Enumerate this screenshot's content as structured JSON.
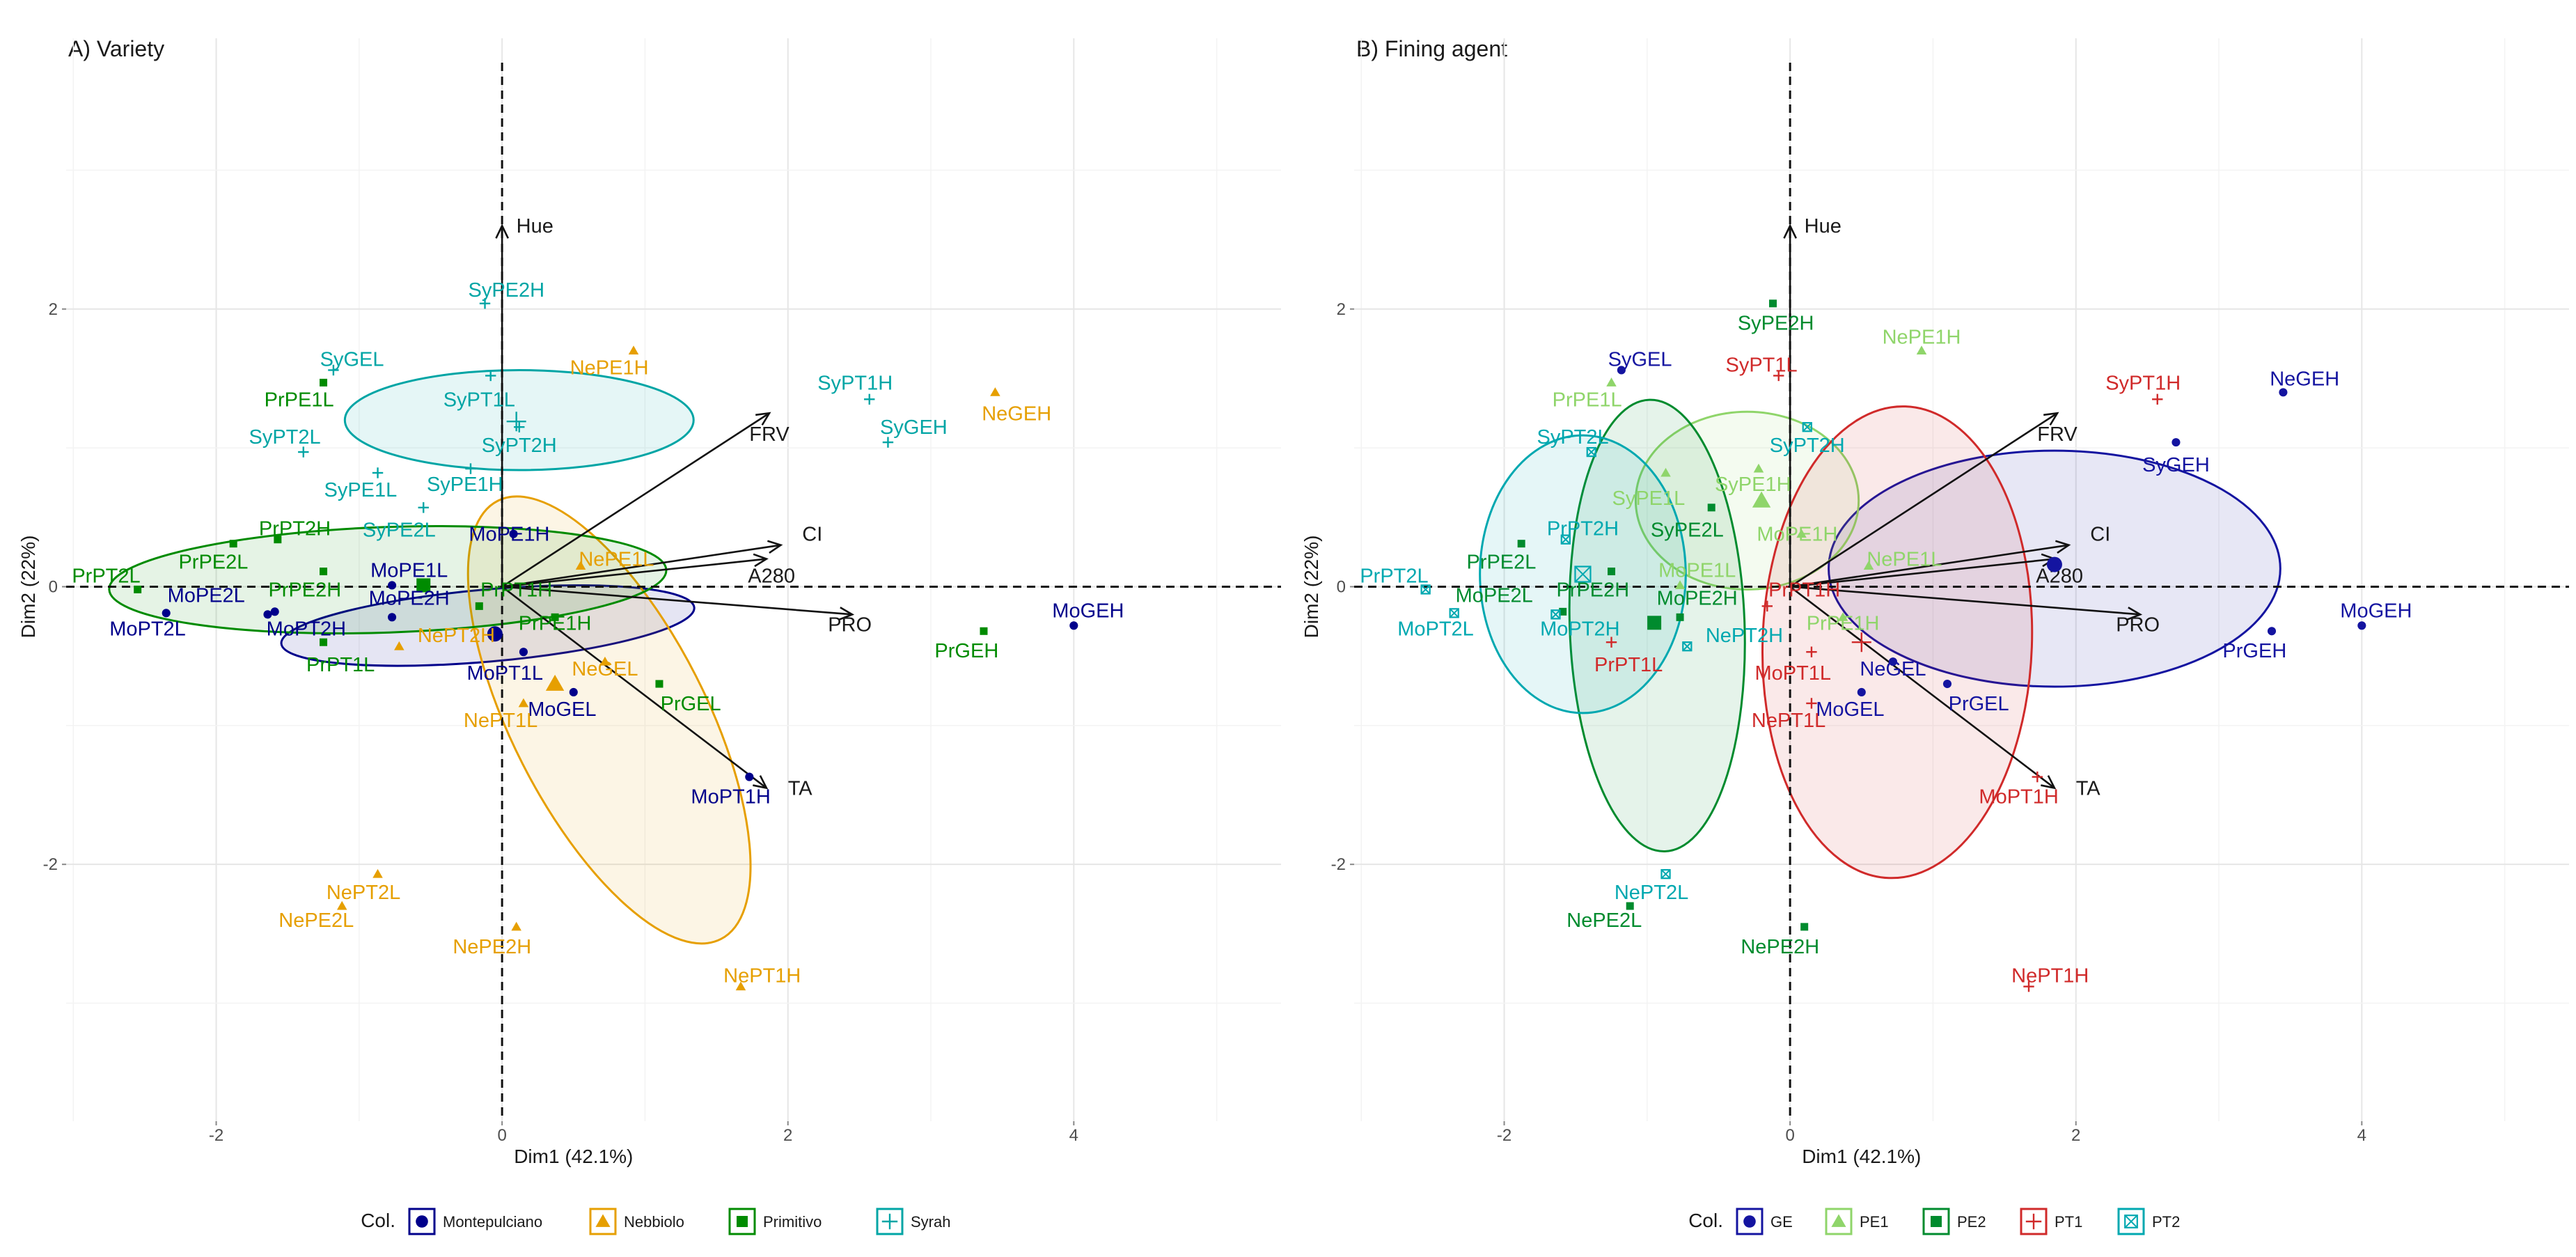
{
  "chart_data": [
    {
      "type": "scatter",
      "subtype": "pca-biplot",
      "title": "A) Variety",
      "xlabel": "Dim1 (42.1%)",
      "ylabel": "Dim2 (22%)",
      "xlim": [
        -3.05,
        5.45
      ],
      "ylim": [
        -3.85,
        3.95
      ],
      "xticks": [
        -2,
        0,
        2,
        4
      ],
      "yticks": [
        -2,
        0,
        2
      ],
      "legend": {
        "title": "Col.",
        "position": "bottom"
      },
      "groups": [
        {
          "name": "Montepulciano",
          "color": "#00008B",
          "shape": "circle"
        },
        {
          "name": "Nebbiolo",
          "color": "#E69F00",
          "shape": "triangle"
        },
        {
          "name": "Primitivo",
          "color": "#008B00",
          "shape": "square"
        },
        {
          "name": "Syrah",
          "color": "#00A5A5",
          "shape": "plus"
        }
      ],
      "points": [
        {
          "label": "MoGEH",
          "group": "Montepulciano",
          "x": 4.0,
          "y": -0.28,
          "lx": 4.1,
          "ly": -0.17
        },
        {
          "label": "MoGEL",
          "group": "Montepulciano",
          "x": 0.5,
          "y": -0.76,
          "lx": 0.42,
          "ly": -0.88
        },
        {
          "label": "MoPT1H",
          "group": "Montepulciano",
          "x": 1.73,
          "y": -1.37,
          "lx": 1.6,
          "ly": -1.51
        },
        {
          "label": "MoPT1L",
          "group": "Montepulciano",
          "x": 0.15,
          "y": -0.47,
          "lx": 0.02,
          "ly": -0.62
        },
        {
          "label": "MoPE1H",
          "group": "Montepulciano",
          "x": 0.08,
          "y": 0.38,
          "lx": 0.05,
          "ly": 0.38
        },
        {
          "label": "MoPE1L",
          "group": "Montepulciano",
          "x": -0.77,
          "y": 0.01,
          "lx": -0.65,
          "ly": 0.12
        },
        {
          "label": "MoPE2H",
          "group": "Montepulciano",
          "x": -0.77,
          "y": -0.22,
          "lx": -0.65,
          "ly": -0.08
        },
        {
          "label": "MoPE2L",
          "group": "Montepulciano",
          "x": -1.59,
          "y": -0.18,
          "lx": -2.07,
          "ly": -0.06
        },
        {
          "label": "MoPT2H",
          "group": "Montepulciano",
          "x": -1.64,
          "y": -0.2,
          "lx": -1.37,
          "ly": -0.3
        },
        {
          "label": "MoPT2L",
          "group": "Montepulciano",
          "x": -2.35,
          "y": -0.19,
          "lx": -2.48,
          "ly": -0.3
        },
        {
          "label": "NeGEH",
          "group": "Nebbiolo",
          "x": 3.45,
          "y": 1.4,
          "lx": 3.6,
          "ly": 1.25
        },
        {
          "label": "NeGEL",
          "group": "Nebbiolo",
          "x": 0.72,
          "y": -0.54,
          "lx": 0.72,
          "ly": -0.59
        },
        {
          "label": "NePE1H",
          "group": "Nebbiolo",
          "x": 0.92,
          "y": 1.7,
          "lx": 0.75,
          "ly": 1.58
        },
        {
          "label": "NePE1L",
          "group": "Nebbiolo",
          "x": 0.55,
          "y": 0.15,
          "lx": 0.8,
          "ly": 0.2
        },
        {
          "label": "NePT1H",
          "group": "Nebbiolo",
          "x": 1.67,
          "y": -2.88,
          "lx": 1.82,
          "ly": -2.8
        },
        {
          "label": "NePT1L",
          "group": "Nebbiolo",
          "x": 0.15,
          "y": -0.84,
          "lx": -0.01,
          "ly": -0.96
        },
        {
          "label": "NePE2H",
          "group": "Nebbiolo",
          "x": 0.1,
          "y": -2.45,
          "lx": -0.07,
          "ly": -2.59
        },
        {
          "label": "NePE2L",
          "group": "Nebbiolo",
          "x": -1.12,
          "y": -2.3,
          "lx": -1.3,
          "ly": -2.4
        },
        {
          "label": "NePT2L",
          "group": "Nebbiolo",
          "x": -0.87,
          "y": -2.07,
          "lx": -0.97,
          "ly": -2.2
        },
        {
          "label": "NePT2H",
          "group": "Nebbiolo",
          "x": -0.72,
          "y": -0.43,
          "lx": -0.32,
          "ly": -0.35
        },
        {
          "label": "PrGEH",
          "group": "Primitivo",
          "x": 3.37,
          "y": -0.32,
          "lx": 3.25,
          "ly": -0.46
        },
        {
          "label": "PrGEL",
          "group": "Primitivo",
          "x": 1.1,
          "y": -0.7,
          "lx": 1.32,
          "ly": -0.84
        },
        {
          "label": "PrPE1L",
          "group": "Primitivo",
          "x": -1.25,
          "y": 1.47,
          "lx": -1.42,
          "ly": 1.35
        },
        {
          "label": "PrPE1H",
          "group": "Primitivo",
          "x": 0.37,
          "y": -0.22,
          "lx": 0.37,
          "ly": -0.26
        },
        {
          "label": "PrPE2H",
          "group": "Primitivo",
          "x": -1.25,
          "y": 0.11,
          "lx": -1.38,
          "ly": -0.02
        },
        {
          "label": "PrPE2L",
          "group": "Primitivo",
          "x": -1.88,
          "y": 0.31,
          "lx": -2.02,
          "ly": 0.18
        },
        {
          "label": "PrPT2H",
          "group": "Primitivo",
          "x": -1.57,
          "y": 0.34,
          "lx": -1.45,
          "ly": 0.42
        },
        {
          "label": "PrPT2L",
          "group": "Primitivo",
          "x": -2.55,
          "y": -0.02,
          "lx": -2.77,
          "ly": 0.08
        },
        {
          "label": "PrPT1H",
          "group": "Primitivo",
          "x": -0.16,
          "y": -0.14,
          "lx": 0.1,
          "ly": -0.02
        },
        {
          "label": "PrPT1L",
          "group": "Primitivo",
          "x": -1.25,
          "y": -0.4,
          "lx": -1.13,
          "ly": -0.56
        },
        {
          "label": "SyGEH",
          "group": "Syrah",
          "x": 2.7,
          "y": 1.04,
          "lx": 2.88,
          "ly": 1.15
        },
        {
          "label": "SyGEL",
          "group": "Syrah",
          "x": -1.18,
          "y": 1.56,
          "lx": -1.05,
          "ly": 1.64
        },
        {
          "label": "SyPE1H",
          "group": "Syrah",
          "x": -0.22,
          "y": 0.85,
          "lx": -0.26,
          "ly": 0.74
        },
        {
          "label": "SyPE1L",
          "group": "Syrah",
          "x": -0.87,
          "y": 0.82,
          "lx": -0.99,
          "ly": 0.7
        },
        {
          "label": "SyPE2H",
          "group": "Syrah",
          "x": -0.12,
          "y": 2.04,
          "lx": 0.03,
          "ly": 2.14
        },
        {
          "label": "SyPE2L",
          "group": "Syrah",
          "x": -0.55,
          "y": 0.57,
          "lx": -0.72,
          "ly": 0.41
        },
        {
          "label": "SyPT1H",
          "group": "Syrah",
          "x": 2.57,
          "y": 1.35,
          "lx": 2.47,
          "ly": 1.47
        },
        {
          "label": "SyPT1L",
          "group": "Syrah",
          "x": -0.08,
          "y": 1.52,
          "lx": -0.16,
          "ly": 1.35
        },
        {
          "label": "SyPT2H",
          "group": "Syrah",
          "x": 0.12,
          "y": 1.15,
          "lx": 0.12,
          "ly": 1.02
        },
        {
          "label": "SyPT2L",
          "group": "Syrah",
          "x": -1.39,
          "y": 0.97,
          "lx": -1.52,
          "ly": 1.08
        }
      ],
      "ellipses": [
        {
          "group": "Montepulciano",
          "cx": -0.1,
          "cy": -0.28,
          "rx": 1.45,
          "ry": 0.26,
          "angle": -5
        },
        {
          "group": "Nebbiolo",
          "cx": 0.75,
          "cy": -0.96,
          "rx": 1.72,
          "ry": 0.7,
          "angle": 63
        },
        {
          "group": "Primitivo",
          "cx": -0.8,
          "cy": 0.05,
          "rx": 1.95,
          "ry": 0.38,
          "angle": -2
        },
        {
          "group": "Syrah",
          "cx": 0.12,
          "cy": 1.2,
          "rx": 1.22,
          "ry": 0.36,
          "angle": 0
        }
      ],
      "centroids": [
        {
          "group": "Montepulciano",
          "x": -0.05,
          "y": -0.34
        },
        {
          "group": "Nebbiolo",
          "x": 0.37,
          "y": -0.7
        },
        {
          "group": "Primitivo",
          "x": -0.55,
          "y": 0.01
        },
        {
          "group": "Syrah",
          "x": 0.1,
          "y": 1.19
        }
      ],
      "vectors": [
        {
          "label": "Hue",
          "x": 0,
          "y": 2.6,
          "lx": 0.1,
          "ly": 2.6
        },
        {
          "label": "FRV",
          "x": 1.87,
          "y": 1.25,
          "lx": 1.73,
          "ly": 1.1
        },
        {
          "label": "CI",
          "x": 1.95,
          "y": 0.3,
          "lx": 2.1,
          "ly": 0.38
        },
        {
          "label": "A280",
          "x": 1.85,
          "y": 0.2,
          "lx": 1.72,
          "ly": 0.08
        },
        {
          "label": "PRO",
          "x": 2.45,
          "y": -0.2,
          "lx": 2.28,
          "ly": -0.27
        },
        {
          "label": "TA",
          "x": 1.85,
          "y": -1.45,
          "lx": 2.0,
          "ly": -1.45
        }
      ]
    },
    {
      "type": "scatter",
      "subtype": "pca-biplot",
      "title": "B) Fining agent",
      "xlabel": "Dim1 (42.1%)",
      "ylabel": "Dim2 (22%)",
      "xlim": [
        -3.05,
        5.45
      ],
      "ylim": [
        -3.85,
        3.95
      ],
      "xticks": [
        -2,
        0,
        2,
        4
      ],
      "yticks": [
        -2,
        0,
        2
      ],
      "legend": {
        "title": "Col.",
        "position": "bottom"
      },
      "groups": [
        {
          "name": "GE",
          "color": "#1414A0",
          "shape": "circle"
        },
        {
          "name": "PE1",
          "color": "#8FD56A",
          "shape": "triangle"
        },
        {
          "name": "PE2",
          "color": "#008B2E",
          "shape": "square"
        },
        {
          "name": "PT1",
          "color": "#D02A2A",
          "shape": "plus"
        },
        {
          "name": "PT2",
          "color": "#00A8B0",
          "shape": "boxcross"
        }
      ],
      "points": [
        {
          "label": "MoGEH",
          "group": "GE",
          "x": 4.0,
          "y": -0.28,
          "lx": 4.1,
          "ly": -0.17
        },
        {
          "label": "MoGEL",
          "group": "GE",
          "x": 0.5,
          "y": -0.76,
          "lx": 0.42,
          "ly": -0.88
        },
        {
          "label": "NeGEH",
          "group": "GE",
          "x": 3.45,
          "y": 1.4,
          "lx": 3.6,
          "ly": 1.5
        },
        {
          "label": "NeGEL",
          "group": "GE",
          "x": 0.72,
          "y": -0.54,
          "lx": 0.72,
          "ly": -0.59
        },
        {
          "label": "PrGEH",
          "group": "GE",
          "x": 3.37,
          "y": -0.32,
          "lx": 3.25,
          "ly": -0.46
        },
        {
          "label": "PrGEL",
          "group": "GE",
          "x": 1.1,
          "y": -0.7,
          "lx": 1.32,
          "ly": -0.84
        },
        {
          "label": "SyGEH",
          "group": "GE",
          "x": 2.7,
          "y": 1.04,
          "lx": 2.7,
          "ly": 0.88
        },
        {
          "label": "SyGEL",
          "group": "GE",
          "x": -1.18,
          "y": 1.56,
          "lx": -1.05,
          "ly": 1.64
        },
        {
          "label": "NePE1H",
          "group": "PE1",
          "x": 0.92,
          "y": 1.7,
          "lx": 0.92,
          "ly": 1.8
        },
        {
          "label": "NePE1L",
          "group": "PE1",
          "x": 0.55,
          "y": 0.15,
          "lx": 0.8,
          "ly": 0.2
        },
        {
          "label": "PrPE1L",
          "group": "PE1",
          "x": -1.25,
          "y": 1.47,
          "lx": -1.42,
          "ly": 1.35
        },
        {
          "label": "PrPE1H",
          "group": "PE1",
          "x": 0.37,
          "y": -0.22,
          "lx": 0.37,
          "ly": -0.26
        },
        {
          "label": "SyPE1H",
          "group": "PE1",
          "x": -0.22,
          "y": 0.85,
          "lx": -0.26,
          "ly": 0.74
        },
        {
          "label": "SyPE1L",
          "group": "PE1",
          "x": -0.87,
          "y": 0.82,
          "lx": -0.99,
          "ly": 0.64
        },
        {
          "label": "MoPE1H",
          "group": "PE1",
          "x": 0.08,
          "y": 0.38,
          "lx": 0.05,
          "ly": 0.38
        },
        {
          "label": "MoPE1L",
          "group": "PE1",
          "x": -0.77,
          "y": 0.01,
          "lx": -0.65,
          "ly": 0.12
        },
        {
          "label": "NePE2H",
          "group": "PE2",
          "x": 0.1,
          "y": -2.45,
          "lx": -0.07,
          "ly": -2.59
        },
        {
          "label": "NePE2L",
          "group": "PE2",
          "x": -1.12,
          "y": -2.3,
          "lx": -1.3,
          "ly": -2.4
        },
        {
          "label": "PrPE2H",
          "group": "PE2",
          "x": -1.25,
          "y": 0.11,
          "lx": -1.38,
          "ly": -0.02
        },
        {
          "label": "PrPE2L",
          "group": "PE2",
          "x": -1.88,
          "y": 0.31,
          "lx": -2.02,
          "ly": 0.18
        },
        {
          "label": "SyPE2H",
          "group": "PE2",
          "x": -0.12,
          "y": 2.04,
          "lx": -0.1,
          "ly": 1.9
        },
        {
          "label": "SyPE2L",
          "group": "PE2",
          "x": -0.55,
          "y": 0.57,
          "lx": -0.72,
          "ly": 0.41
        },
        {
          "label": "MoPE2H",
          "group": "PE2",
          "x": -0.77,
          "y": -0.22,
          "lx": -0.65,
          "ly": -0.08
        },
        {
          "label": "MoPE2L",
          "group": "PE2",
          "x": -1.59,
          "y": -0.18,
          "lx": -2.07,
          "ly": -0.06
        },
        {
          "label": "NePT1H",
          "group": "PT1",
          "x": 1.67,
          "y": -2.88,
          "lx": 1.82,
          "ly": -2.8
        },
        {
          "label": "NePT1L",
          "group": "PT1",
          "x": 0.15,
          "y": -0.84,
          "lx": -0.01,
          "ly": -0.96
        },
        {
          "label": "MoPT1H",
          "group": "PT1",
          "x": 1.73,
          "y": -1.37,
          "lx": 1.6,
          "ly": -1.51
        },
        {
          "label": "MoPT1L",
          "group": "PT1",
          "x": 0.15,
          "y": -0.47,
          "lx": 0.02,
          "ly": -0.62
        },
        {
          "label": "PrPT1H",
          "group": "PT1",
          "x": -0.16,
          "y": -0.14,
          "lx": 0.1,
          "ly": -0.02
        },
        {
          "label": "PrPT1L",
          "group": "PT1",
          "x": -1.25,
          "y": -0.4,
          "lx": -1.13,
          "ly": -0.56
        },
        {
          "label": "SyPT1H",
          "group": "PT1",
          "x": 2.57,
          "y": 1.35,
          "lx": 2.47,
          "ly": 1.47
        },
        {
          "label": "SyPT1L",
          "group": "PT1",
          "x": -0.08,
          "y": 1.52,
          "lx": -0.2,
          "ly": 1.6
        },
        {
          "label": "MoPT2H",
          "group": "PT2",
          "x": -1.64,
          "y": -0.2,
          "lx": -1.47,
          "ly": -0.3
        },
        {
          "label": "MoPT2L",
          "group": "PT2",
          "x": -2.35,
          "y": -0.19,
          "lx": -2.48,
          "ly": -0.3
        },
        {
          "label": "NePT2H",
          "group": "PT2",
          "x": -0.72,
          "y": -0.43,
          "lx": -0.32,
          "ly": -0.35
        },
        {
          "label": "NePT2L",
          "group": "PT2",
          "x": -0.87,
          "y": -2.07,
          "lx": -0.97,
          "ly": -2.2
        },
        {
          "label": "PrPT2H",
          "group": "PT2",
          "x": -1.57,
          "y": 0.34,
          "lx": -1.45,
          "ly": 0.42
        },
        {
          "label": "PrPT2L",
          "group": "PT2",
          "x": -2.55,
          "y": -0.02,
          "lx": -2.77,
          "ly": 0.08
        },
        {
          "label": "SyPT2H",
          "group": "PT2",
          "x": 0.12,
          "y": 1.15,
          "lx": 0.12,
          "ly": 1.02
        },
        {
          "label": "SyPT2L",
          "group": "PT2",
          "x": -1.39,
          "y": 0.97,
          "lx": -1.52,
          "ly": 1.08
        }
      ],
      "ellipses": [
        {
          "group": "GE",
          "cx": 1.85,
          "cy": 0.13,
          "rx": 1.58,
          "ry": 0.85,
          "angle": 0
        },
        {
          "group": "PE1",
          "cx": -0.3,
          "cy": 0.62,
          "rx": 0.78,
          "ry": 0.64,
          "angle": 0
        },
        {
          "group": "PE2",
          "cx": -0.93,
          "cy": -0.28,
          "rx": 1.58,
          "ry": 0.63,
          "angle": 88
        },
        {
          "group": "PT1",
          "cx": 0.75,
          "cy": -0.4,
          "rx": 1.65,
          "ry": 0.97,
          "angle": 92
        },
        {
          "group": "PT2",
          "cx": -1.45,
          "cy": 0.09,
          "rx": 0.72,
          "ry": 1.0,
          "angle": 0
        }
      ],
      "centroids": [
        {
          "group": "GE",
          "x": 1.85,
          "y": 0.16
        },
        {
          "group": "PE1",
          "x": -0.2,
          "y": 0.62
        },
        {
          "group": "PE2",
          "x": -0.95,
          "y": -0.26
        },
        {
          "group": "PT1",
          "x": 0.5,
          "y": -0.4
        },
        {
          "group": "PT2",
          "x": -1.45,
          "y": 0.09
        }
      ],
      "vectors": [
        {
          "label": "Hue",
          "x": 0,
          "y": 2.6,
          "lx": 0.1,
          "ly": 2.6
        },
        {
          "label": "FRV",
          "x": 1.87,
          "y": 1.25,
          "lx": 1.73,
          "ly": 1.1
        },
        {
          "label": "CI",
          "x": 1.95,
          "y": 0.3,
          "lx": 2.1,
          "ly": 0.38
        },
        {
          "label": "A280",
          "x": 1.85,
          "y": 0.2,
          "lx": 1.72,
          "ly": 0.08
        },
        {
          "label": "PRO",
          "x": 2.45,
          "y": -0.2,
          "lx": 2.28,
          "ly": -0.27
        },
        {
          "label": "TA",
          "x": 1.85,
          "y": -1.45,
          "lx": 2.0,
          "ly": -1.45
        }
      ]
    }
  ]
}
